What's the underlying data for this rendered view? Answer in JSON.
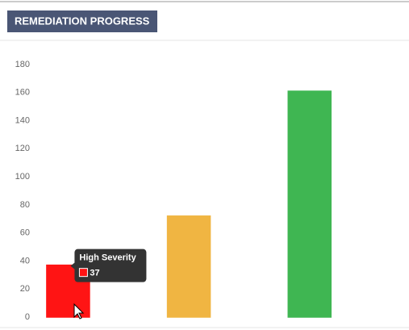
{
  "header": {
    "title": "REMEDIATION PROGRESS"
  },
  "chart_data": {
    "type": "bar",
    "categories": [
      null,
      null,
      null,
      null,
      null,
      null
    ],
    "values": [
      37,
      0,
      72,
      0,
      161,
      0
    ],
    "colors": [
      "#ff1414",
      "#e0e0e0",
      "#f0b542",
      "#e0e0e0",
      "#3fb652",
      "#e0e0e0"
    ],
    "ylim": [
      0,
      180
    ],
    "yticks": [
      0,
      20,
      40,
      60,
      80,
      100,
      120,
      140,
      160,
      180
    ],
    "grid": false,
    "tooltip_title": "High Severity"
  }
}
